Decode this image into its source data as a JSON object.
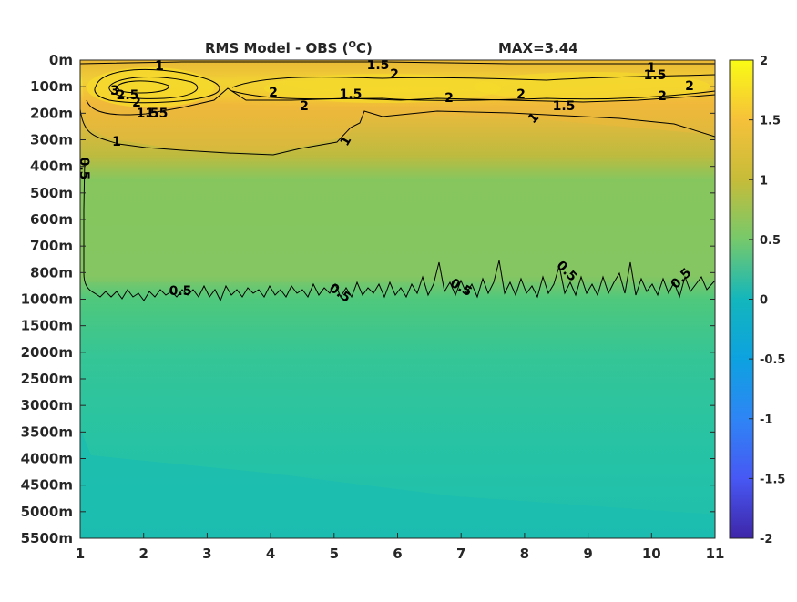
{
  "chart_data": {
    "type": "heatmap",
    "title": "RMS Model - OBS (",
    "title_unit_sup": "O",
    "title_unit_tail": "C)",
    "max_label": "MAX=3.44",
    "xlabel": "",
    "ylabel": "",
    "x_ticks": [
      "1",
      "2",
      "3",
      "4",
      "5",
      "6",
      "7",
      "8",
      "9",
      "10",
      "11"
    ],
    "xlim": [
      1,
      11
    ],
    "y_tick_labels": [
      "0m",
      "100m",
      "200m",
      "300m",
      "400m",
      "500m",
      "600m",
      "700m",
      "800m",
      "1000m",
      "1500m",
      "2000m",
      "2500m",
      "3000m",
      "3500m",
      "4000m",
      "4500m",
      "5000m",
      "5500m"
    ],
    "colorbar": {
      "ticks": [
        "2",
        "1.5",
        "1",
        "0.5",
        "0",
        "-0.5",
        "-1",
        "-1.5",
        "-2"
      ],
      "range": [
        -2,
        2
      ],
      "colormap": "parula",
      "colors": [
        "#3e26a8",
        "#4743f8",
        "#2e85f5",
        "#13b3cf",
        "#21c4a2",
        "#76c96b",
        "#c6bc39",
        "#f8bb37",
        "#f9fb15"
      ]
    },
    "depth_profile": {
      "levels": [
        "0m",
        "100m",
        "200m",
        "300m",
        "400m",
        "500m",
        "600m",
        "700m",
        "800m",
        "1000m",
        "1500m",
        "2000m",
        "2500m",
        "3000m",
        "3500m",
        "4000m",
        "4500m",
        "5000m",
        "5500m"
      ],
      "values": [
        1.2,
        2.0,
        1.3,
        0.9,
        0.8,
        0.75,
        0.7,
        0.7,
        0.65,
        0.5,
        0.35,
        0.3,
        0.28,
        0.25,
        0.22,
        0.2,
        0.18,
        0.18,
        0.18
      ]
    },
    "contour_labels": [
      "1",
      "1.5",
      "1",
      "1.5",
      "2",
      "2",
      "1.5",
      "2",
      "2",
      "2",
      "3",
      "2.5",
      "2",
      "1.5",
      "1",
      "1.5",
      "1",
      "1",
      "2",
      "2",
      "1.5",
      "0.5",
      "0.5",
      "0.5",
      "0.5",
      "0.5",
      "0.5"
    ],
    "grid": false
  }
}
